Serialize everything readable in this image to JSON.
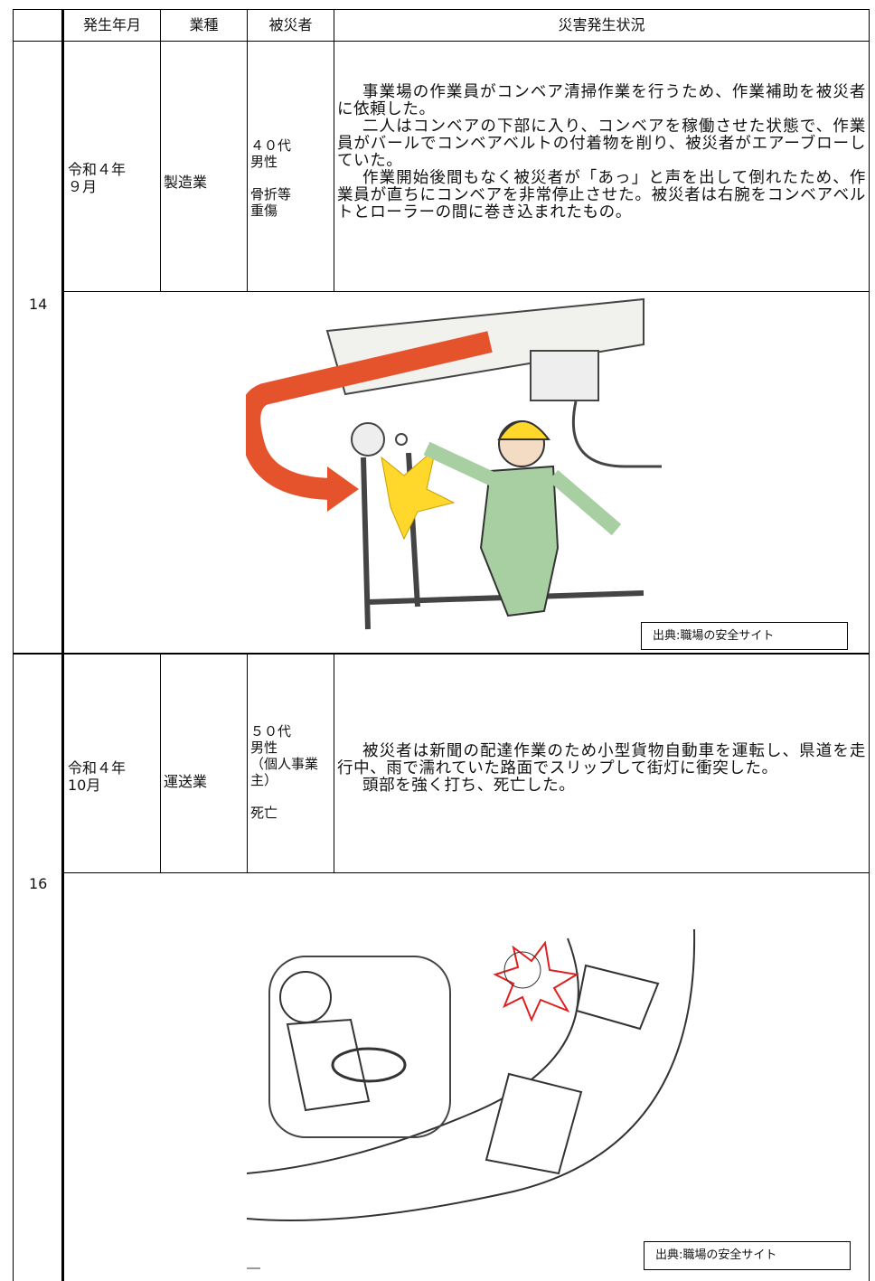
{
  "header": [
    "発生年月",
    "業種",
    "被災者",
    "災害発生状況"
  ],
  "cases": [
    {
      "number": "14",
      "date": [
        "令和４年",
        "９月"
      ],
      "industry": "製造業",
      "victim": {
        "profile": [
          "４０代",
          "男性"
        ],
        "injury": [
          "骨折等",
          "重傷"
        ]
      },
      "situation": [
        "事業場の作業員がコンベア清掃作業を行うため、作業補助を被災者に依頼した。",
        "二人はコンベアの下部に入り、コンベアを稼働させた状態で、作業員がバールでコンベアベルトの付着物を削り、被災者がエアーブローしていた。",
        "作業開始後間もなく被災者が「あっ」と声を出して倒れたため、作業員が直ちにコンベアを非常停止させた。被災者は右腕をコンベアベルトとローラーの間に巻き込まれたもの。"
      ],
      "credit": "出典:職場の安全サイト"
    },
    {
      "number": "16",
      "date": [
        "令和４年",
        "10月"
      ],
      "industry": "運送業",
      "victim": {
        "profile": [
          "５０代",
          "男性",
          "（個人事業主）"
        ],
        "injury": [
          "死亡"
        ]
      },
      "situation": [
        "被災者は新聞の配達作業のため小型貨物自動車を運転し、県道を走行中、雨で濡れていた路面でスリップして街灯に衝突した。",
        "頭部を強く打ち、死亡した。"
      ],
      "credit": "出典:職場の安全サイト"
    }
  ]
}
